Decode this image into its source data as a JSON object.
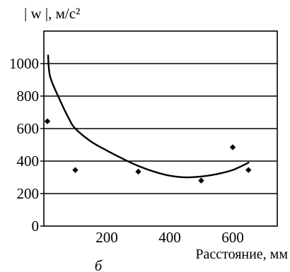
{
  "chart_data": {
    "type": "scatter",
    "title": "",
    "ylabel": "| w |,  м/с²",
    "xlabel": "Расстояние, мм",
    "caption": "б",
    "xlim": [
      0,
      700
    ],
    "ylim": [
      0,
      1000
    ],
    "x_ticks": [
      200,
      400,
      600
    ],
    "y_ticks": [
      0,
      200,
      400,
      600,
      800,
      1000
    ],
    "grid": "horizontal",
    "legend": "none",
    "series": [
      {
        "kind": "points",
        "x": [
          0,
          100,
          300,
          500,
          600,
          650
        ],
        "y": [
          645,
          345,
          335,
          280,
          485,
          345
        ]
      },
      {
        "kind": "fit-curve",
        "x": [
          0,
          20,
          50,
          80,
          100,
          150,
          200,
          250,
          300,
          350,
          400,
          450,
          500,
          550,
          600,
          650
        ],
        "y": [
          1050,
          920,
          780,
          660,
          600,
          520,
          465,
          415,
          370,
          335,
          310,
          300,
          305,
          320,
          345,
          390
        ]
      }
    ]
  }
}
